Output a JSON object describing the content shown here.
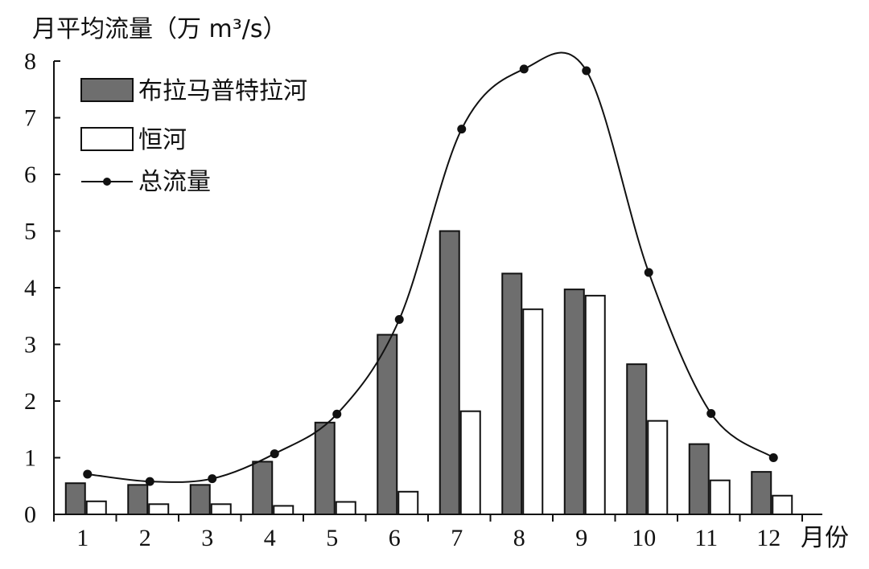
{
  "chart_data": {
    "type": "bar",
    "ylabel": "月平均流量（万 m³/s）",
    "xlabel_unit": "月份",
    "categories": [
      "1",
      "2",
      "3",
      "4",
      "5",
      "6",
      "7",
      "8",
      "9",
      "10",
      "11",
      "12"
    ],
    "ylim": [
      0,
      8
    ],
    "yticks": [
      "0",
      "1",
      "2",
      "3",
      "4",
      "5",
      "6",
      "7",
      "8"
    ],
    "grid": false,
    "legend_position": "top-left",
    "series": [
      {
        "name": "布拉马普特拉河",
        "kind": "bar",
        "color": "#6e6e6e",
        "values": [
          0.55,
          0.52,
          0.52,
          0.93,
          1.62,
          3.17,
          5.0,
          4.25,
          3.97,
          2.65,
          1.24,
          0.75
        ]
      },
      {
        "name": "恒河",
        "kind": "bar",
        "color": "#ffffff",
        "values": [
          0.23,
          0.18,
          0.18,
          0.15,
          0.22,
          0.4,
          1.82,
          3.62,
          3.86,
          1.65,
          0.6,
          0.33
        ]
      },
      {
        "name": "总流量",
        "kind": "line",
        "color": "#111111",
        "values": [
          0.71,
          0.58,
          0.63,
          1.07,
          1.77,
          3.44,
          6.8,
          7.86,
          7.83,
          4.27,
          1.78,
          1.0
        ]
      }
    ]
  }
}
